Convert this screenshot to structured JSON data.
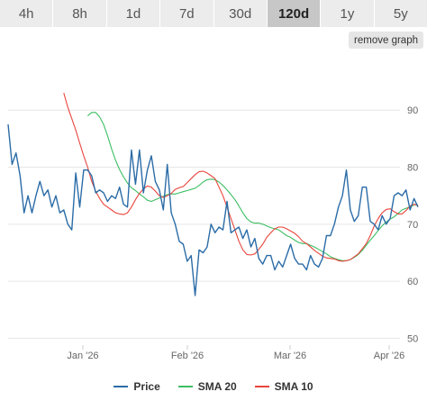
{
  "tabs": [
    {
      "label": "4h",
      "active": false
    },
    {
      "label": "8h",
      "active": false
    },
    {
      "label": "1d",
      "active": false
    },
    {
      "label": "7d",
      "active": false
    },
    {
      "label": "30d",
      "active": false
    },
    {
      "label": "120d",
      "active": true
    },
    {
      "label": "1y",
      "active": false
    },
    {
      "label": "5y",
      "active": false
    }
  ],
  "remove_graph_label": "remove graph",
  "chart_data": {
    "type": "line",
    "x_ticks": [
      "Jan '26",
      "Feb '26",
      "Mar '26",
      "Apr '26"
    ],
    "y_ticks": [
      50,
      60,
      70,
      80,
      90
    ],
    "ylim": [
      48.8,
      99.2
    ],
    "grid": true,
    "legend_position": "bottom",
    "series": [
      {
        "name": "Price",
        "color": "#2b6ca7",
        "values": [
          87.5,
          80.5,
          82.5,
          78.5,
          72.0,
          75.0,
          72.0,
          75.0,
          77.5,
          75.0,
          76.0,
          73.0,
          75.0,
          72.0,
          72.5,
          70.0,
          69.0,
          79.0,
          73.0,
          79.5,
          79.5,
          78.5,
          75.5,
          76.0,
          75.5,
          74.0,
          75.0,
          74.5,
          76.5,
          73.5,
          73.0,
          83.0,
          77.0,
          83.0,
          75.5,
          79.5,
          82.0,
          77.5,
          76.0,
          72.5,
          80.5,
          72.0,
          70.0,
          67.0,
          66.5,
          63.5,
          64.5,
          57.5,
          65.5,
          65.0,
          66.0,
          70.0,
          68.5,
          69.5,
          69.0,
          74.0,
          68.5,
          69.0,
          69.5,
          67.5,
          69.0,
          66.0,
          67.5,
          64.0,
          63.0,
          64.5,
          64.5,
          62.0,
          63.5,
          62.5,
          64.5,
          66.5,
          64.0,
          63.0,
          63.0,
          62.0,
          64.5,
          63.0,
          62.5,
          64.0,
          68.0,
          68.0,
          70.0,
          73.0,
          75.0,
          79.5,
          72.5,
          70.5,
          71.5,
          76.5,
          76.5,
          70.5,
          70.0,
          69.0,
          71.5,
          70.0,
          71.0,
          75.0,
          75.5,
          75.0,
          76.0,
          72.5,
          74.5,
          73.0
        ]
      },
      {
        "name": "SMA 20",
        "color": "#3dbe63",
        "values": [
          89.0,
          89.6,
          89.6,
          88.8,
          87.5,
          85.5,
          83.2,
          81.2,
          79.6,
          78.3,
          77.2,
          76.4,
          75.9,
          75.3,
          74.8,
          74.2,
          74.0,
          74.3,
          74.6,
          74.9,
          75.2,
          75.3,
          75.3,
          75.5,
          75.7,
          75.9,
          76.1,
          76.3,
          76.8,
          77.4,
          77.8,
          77.9,
          77.8,
          77.4,
          76.8,
          76.0,
          75.2,
          74.3,
          73.2,
          72.0,
          71.0,
          70.4,
          70.2,
          70.2,
          70.0,
          69.7,
          69.4,
          69.2,
          69.0,
          68.5,
          68.0,
          67.7,
          67.2,
          66.8,
          66.6,
          66.6,
          66.3,
          66.0,
          65.6,
          65.2,
          64.8,
          64.3,
          64.0,
          63.8,
          63.6,
          63.6,
          63.8,
          64.2,
          64.7,
          65.4,
          66.3,
          67.2,
          68.0,
          68.9,
          69.7,
          70.4,
          70.9,
          71.3,
          71.9,
          72.5,
          72.8,
          73.0,
          73.4,
          73.4
        ]
      },
      {
        "name": "SMA 10",
        "color": "#e8453c",
        "values": [
          93.0,
          90.5,
          88.5,
          86.5,
          84.2,
          82.0,
          80.0,
          77.5,
          75.8,
          74.5,
          73.5,
          73.0,
          72.5,
          72.0,
          71.8,
          71.7,
          72.0,
          73.0,
          74.3,
          75.4,
          76.2,
          76.7,
          76.5,
          75.8,
          75.0,
          74.7,
          75.0,
          75.4,
          76.1,
          76.4,
          76.6,
          77.3,
          78.0,
          78.7,
          79.2,
          79.3,
          79.0,
          78.5,
          78.0,
          76.5,
          75.0,
          73.0,
          71.0,
          69.0,
          67.0,
          65.5,
          64.7,
          64.6,
          64.8,
          65.6,
          66.5,
          67.7,
          68.5,
          69.2,
          69.5,
          69.5,
          69.2,
          68.8,
          68.4,
          67.8,
          67.0,
          66.6,
          66.0,
          65.4,
          64.9,
          64.4,
          64.1,
          64.0,
          63.9,
          63.6,
          63.5,
          63.6,
          63.8,
          64.3,
          64.8,
          65.7,
          66.6,
          68.0,
          69.7,
          71.0,
          72.0,
          72.6,
          72.7,
          72.2,
          71.8,
          71.8,
          72.4,
          73.2,
          73.5,
          73.3
        ]
      }
    ]
  }
}
